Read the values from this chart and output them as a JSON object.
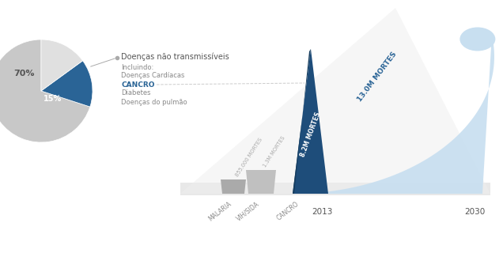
{
  "bg_color": "#ffffff",
  "dark_blue": "#1e4d7a",
  "mid_blue": "#2a6496",
  "light_blue": "#c8dff0",
  "gray_dark": "#aaaaaa",
  "gray_mid": "#bbbbbb",
  "gray_light": "#d0d0d0",
  "gray_floor": "#e5e5e5",
  "pie_teal": "#2a6496",
  "pie_gray": "#c8c8c8",
  "pie_lgray": "#e0e0e0",
  "text_dark": "#555555",
  "text_gray": "#888888",
  "text_blue": "#2a6496",
  "white": "#ffffff",
  "legend_title": "Doenças não transmissíveis",
  "legend_incluindo": "Incluindo:",
  "legend_doencas": "Doenças Cardíacas",
  "legend_cancro": "CANCRO",
  "legend_diabetes": "Diabetes",
  "legend_pulmao": "Doenças do pulmão",
  "val_malaria": "855.000 MORTES",
  "val_vihsida": "1.3M MORTES",
  "val_cancro_2013": "8.2M MORTES",
  "val_cancro_2030": "13.0M MORTES",
  "lbl_malaria": "MALARIA",
  "lbl_vihsida": "VIH/SIDA",
  "lbl_cancro": "CANCRO",
  "lbl_2013": "2013",
  "lbl_2030": "2030",
  "pct_70": "70%",
  "pct_15": "15%"
}
